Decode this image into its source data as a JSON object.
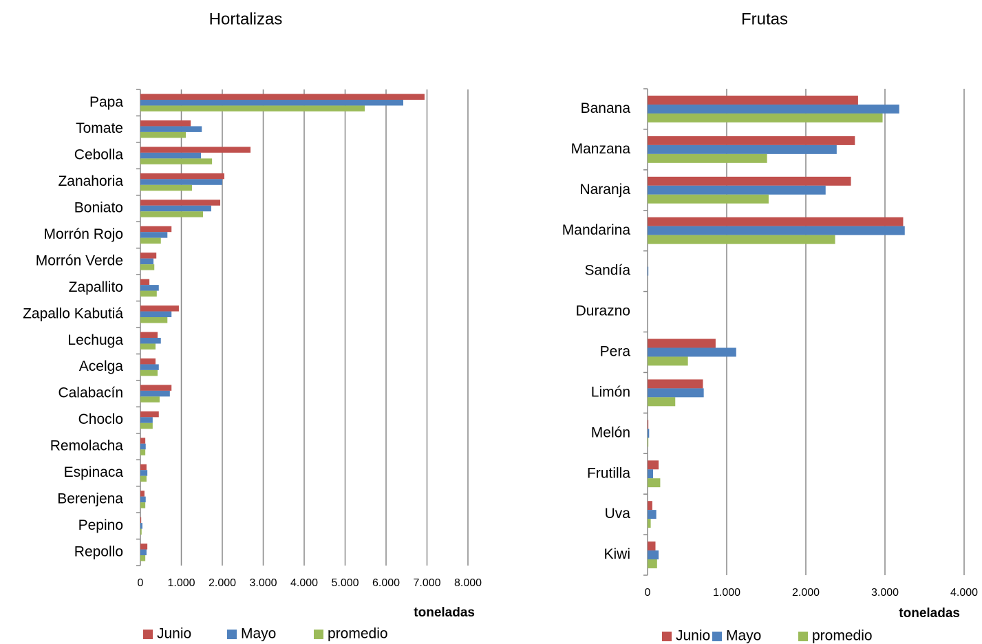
{
  "chart_data": [
    {
      "type": "barh",
      "title": "Hortalizas",
      "xlabel": "toneladas",
      "categories": [
        "Papa",
        "Tomate",
        "Cebolla",
        "Zanahoria",
        "Boniato",
        "Morrón Rojo",
        "Morrón Verde",
        "Zapallito",
        "Zapallo Kabutiá",
        "Lechuga",
        "Acelga",
        "Calabacín",
        "Choclo",
        "Remolacha",
        "Espinaca",
        "Berenjena",
        "Pepino",
        "Repollo"
      ],
      "series": [
        {
          "name": "Junio",
          "color": "#c0504d",
          "values": [
            6940,
            1230,
            2690,
            2050,
            1950,
            760,
            390,
            220,
            940,
            420,
            370,
            760,
            450,
            120,
            150,
            100,
            20,
            170
          ]
        },
        {
          "name": "Mayo",
          "color": "#4f81bd",
          "values": [
            6420,
            1500,
            1480,
            2000,
            1730,
            660,
            320,
            450,
            760,
            500,
            450,
            720,
            300,
            130,
            170,
            130,
            50,
            150
          ]
        },
        {
          "name": "promedio",
          "color": "#9bbb59",
          "values": [
            5480,
            1110,
            1750,
            1260,
            1530,
            500,
            340,
            400,
            660,
            370,
            420,
            470,
            300,
            120,
            150,
            120,
            30,
            120
          ]
        }
      ],
      "xlim": [
        0,
        8000
      ],
      "xticks": [
        0,
        {
          "value": 1000,
          "label": "1.000"
        },
        {
          "value": 2000,
          "label": "2.000"
        },
        {
          "value": 3000,
          "label": "3.000"
        },
        {
          "value": 4000,
          "label": "4.000"
        },
        {
          "value": 5000,
          "label": "5.000"
        },
        {
          "value": 6000,
          "label": "6.000"
        },
        {
          "value": 7000,
          "label": "7.000"
        },
        {
          "value": 8000,
          "label": "8.000"
        }
      ],
      "grid": true
    },
    {
      "type": "barh",
      "title": "Frutas",
      "xlabel": "toneladas",
      "categories": [
        "Banana",
        "Manzana",
        "Naranja",
        "Mandarina",
        "Sandía",
        "Durazno",
        "Pera",
        "Limón",
        "Melón",
        "Frutilla",
        "Uva",
        "Kiwi"
      ],
      "series": [
        {
          "name": "Junio",
          "color": "#c0504d",
          "values": [
            2660,
            2620,
            2570,
            3230,
            0,
            0,
            860,
            700,
            10,
            140,
            60,
            100
          ]
        },
        {
          "name": "Mayo",
          "color": "#4f81bd",
          "values": [
            3180,
            2390,
            2250,
            3250,
            10,
            0,
            1120,
            710,
            20,
            70,
            110,
            140
          ]
        },
        {
          "name": "promedio",
          "color": "#9bbb59",
          "values": [
            2970,
            1510,
            1530,
            2370,
            0,
            0,
            510,
            350,
            10,
            160,
            40,
            120
          ]
        }
      ],
      "xlim": [
        0,
        4000
      ],
      "xticks": [
        0,
        {
          "value": 1000,
          "label": "1.000"
        },
        {
          "value": 2000,
          "label": "2.000"
        },
        {
          "value": 3000,
          "label": "3.000"
        },
        {
          "value": 4000,
          "label": "4.000"
        }
      ],
      "grid": true
    }
  ]
}
